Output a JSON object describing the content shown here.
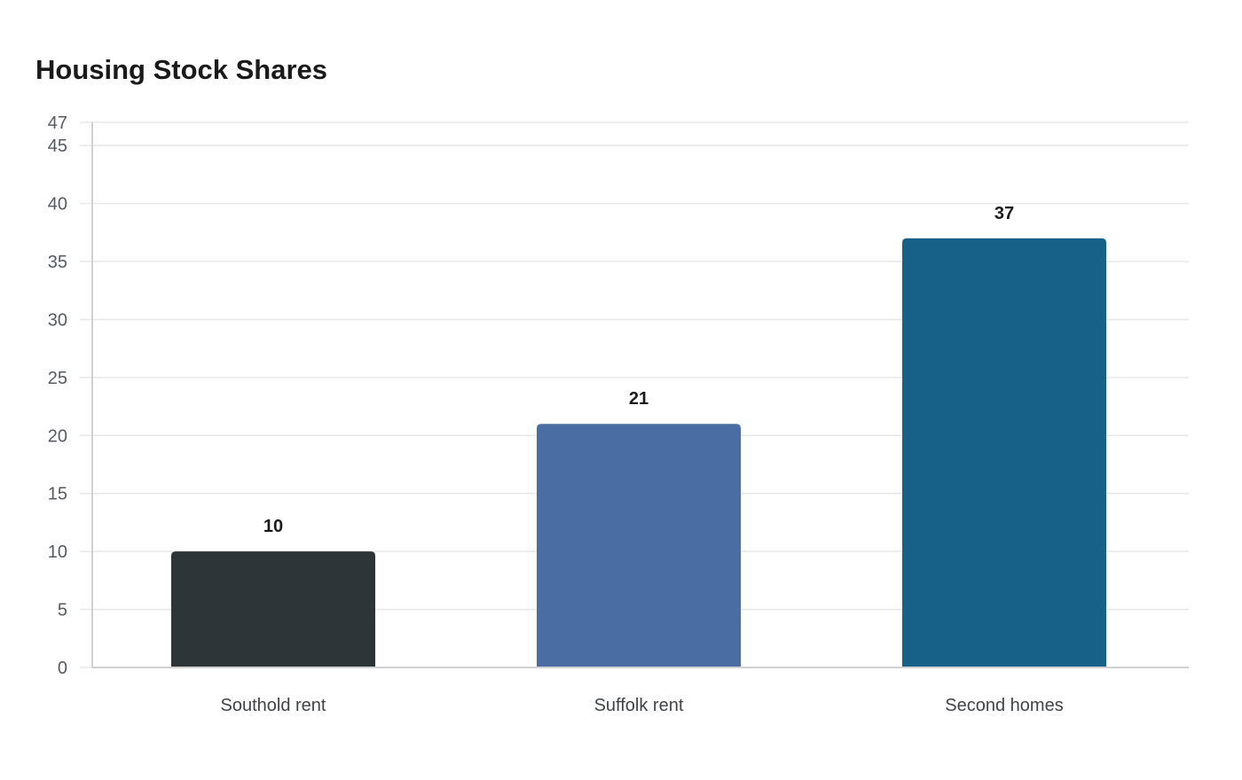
{
  "chart_data": {
    "type": "bar",
    "title": "Housing Stock Shares",
    "xlabel": "",
    "ylabel": "",
    "categories": [
      "Southold rent",
      "Suffolk rent",
      "Second homes"
    ],
    "values": [
      10,
      21,
      37
    ],
    "data_labels": [
      "10",
      "21",
      "37"
    ],
    "ylim": [
      0,
      47
    ],
    "y_ticks": [
      0,
      5,
      10,
      15,
      20,
      25,
      30,
      35,
      40,
      45,
      47
    ],
    "grid": true,
    "legend": "none",
    "colors": [
      "#2e3538",
      "#4a6ea3",
      "#176087"
    ]
  }
}
